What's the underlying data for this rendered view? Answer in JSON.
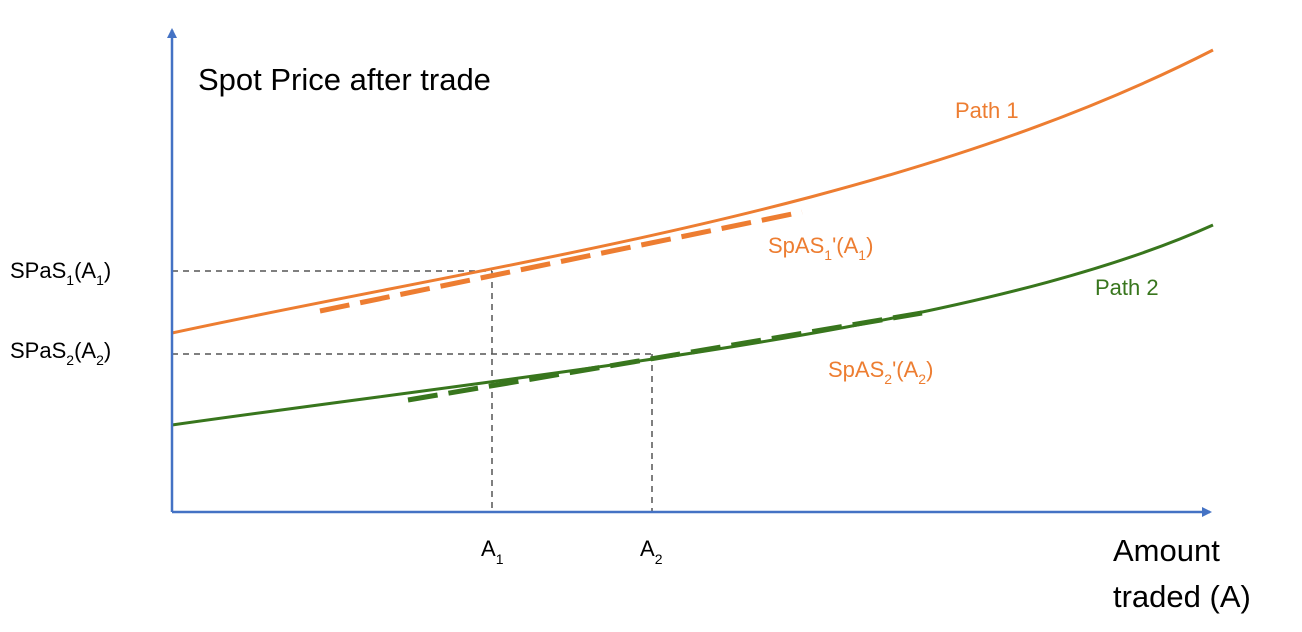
{
  "y_axis_label": "Spot Price after trade",
  "x_axis_label": {
    "line1": "Amount",
    "line2": "traded (A)"
  },
  "curves": [
    {
      "label": "Path 1",
      "color": "#ED7D31"
    },
    {
      "label": "Path 2",
      "color": "#38761D"
    }
  ],
  "tangents": [
    {
      "text": "SpAS",
      "sub1": "1",
      "mid": "'(A",
      "sub2": "1",
      "end": ")",
      "color": "#ED7D31"
    },
    {
      "text": "SpAS",
      "sub1": "2",
      "mid": "'(A",
      "sub2": "2",
      "end": ")",
      "color": "#ED7D31"
    }
  ],
  "y_ticks": [
    {
      "text": "SPaS",
      "sub1": "1",
      "mid": "(A",
      "sub2": "1",
      "end": ")"
    },
    {
      "text": "SPaS",
      "sub1": "2",
      "mid": "(A",
      "sub2": "2",
      "end": ")"
    }
  ],
  "x_ticks": [
    {
      "text": "A",
      "sub": "1"
    },
    {
      "text": "A",
      "sub": "2"
    }
  ],
  "axis_color": "#4472C4",
  "guide_color": "#555555"
}
